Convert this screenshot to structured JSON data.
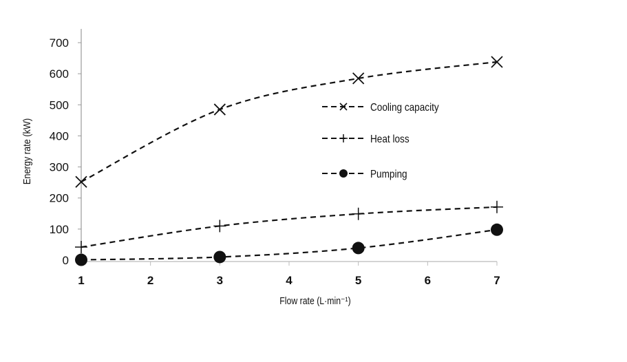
{
  "chart_data": {
    "type": "line",
    "title": "",
    "xlabel": "Flow rate (L·min⁻¹)",
    "ylabel": "Energy rate (kW)",
    "xlim": [
      1,
      7
    ],
    "ylim": [
      0,
      700
    ],
    "xticks": [
      1,
      2,
      3,
      4,
      5,
      6,
      7
    ],
    "yticks": [
      0,
      100,
      200,
      300,
      400,
      500,
      600,
      700
    ],
    "grid": false,
    "legend_placement": "center-right",
    "line_style": "dashed",
    "color": "#111111",
    "x": [
      1,
      3,
      5,
      7
    ],
    "series": [
      {
        "name": "Cooling capacity",
        "marker": "x",
        "values": [
          252,
          485,
          585,
          638
        ]
      },
      {
        "name": "Heat loss",
        "marker": "plus",
        "values": [
          42,
          110,
          149,
          171
        ]
      },
      {
        "name": "Pumping",
        "marker": "circle",
        "values": [
          1,
          10,
          39,
          98
        ]
      }
    ]
  }
}
